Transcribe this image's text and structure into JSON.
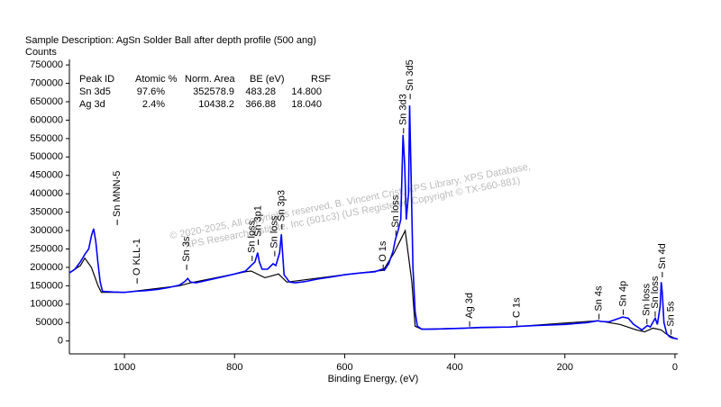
{
  "chart_data": {
    "type": "line",
    "title": "Sample Description:  AgSn Solder Ball after depth profile (500 ang)",
    "y_label": "Counts",
    "x_label": "Binding Energy, (eV)",
    "xlim": [
      1100,
      -5
    ],
    "xticks": [
      1000,
      800,
      600,
      400,
      200,
      0
    ],
    "ylim": [
      -35000,
      765000
    ],
    "yticks": [
      0,
      50000,
      100000,
      150000,
      200000,
      250000,
      300000,
      350000,
      400000,
      450000,
      500000,
      550000,
      600000,
      650000,
      700000,
      750000
    ],
    "watermark": [
      "© 2020-2025,  All copyrights reserved,  B. Vincent Crist,  XPS Library, XPS Database,",
      "XPS Research Institute, Inc (501c3)   (US Registered Copyright © TX-560-881)"
    ],
    "table": {
      "columns": [
        "Peak ID",
        "Atomic %",
        "Norm. Area",
        "BE (eV)",
        "RSF"
      ],
      "rows": [
        [
          "Sn 3d5",
          "97.6%",
          "352578.9",
          "483.28",
          "14.800"
        ],
        [
          "Ag 3d",
          "2.4%",
          "10438.2",
          "366.88",
          "18.040"
        ]
      ]
    },
    "series": [
      {
        "color": "#0000ff",
        "x": [
          1100,
          1090,
          1080,
          1072,
          1065,
          1060,
          1056,
          1052,
          1048,
          1044,
          1040,
          1020,
          1000,
          980,
          960,
          940,
          920,
          900,
          890,
          885,
          880,
          870,
          850,
          820,
          800,
          780,
          770,
          763,
          758,
          755,
          750,
          740,
          730,
          725,
          718,
          715,
          713,
          710,
          700,
          690,
          670,
          650,
          620,
          600,
          570,
          545,
          532,
          528,
          520,
          512,
          508,
          503,
          498,
          494,
          491,
          488,
          484,
          482,
          480,
          476,
          472,
          468,
          460,
          440,
          400,
          380,
          370,
          350,
          300,
          280,
          250,
          200,
          160,
          140,
          135,
          120,
          105,
          95,
          85,
          75,
          60,
          50,
          45,
          36,
          32,
          27,
          25,
          23,
          20,
          15,
          10,
          5,
          0,
          -5
        ],
        "values": [
          185000,
          195000,
          215000,
          235000,
          250000,
          285000,
          305000,
          270000,
          210000,
          160000,
          135000,
          133000,
          132000,
          135000,
          137000,
          140000,
          145000,
          152000,
          162000,
          170000,
          160000,
          158000,
          165000,
          175000,
          182000,
          190000,
          205000,
          215000,
          240000,
          215000,
          195000,
          195000,
          210000,
          205000,
          240000,
          290000,
          245000,
          180000,
          160000,
          158000,
          162000,
          168000,
          175000,
          180000,
          185000,
          188000,
          195000,
          192000,
          210000,
          245000,
          275000,
          300000,
          330000,
          560000,
          480000,
          330000,
          400000,
          640000,
          500000,
          200000,
          80000,
          40000,
          32000,
          32000,
          34000,
          35000,
          36000,
          37000,
          38000,
          40000,
          42000,
          45000,
          50000,
          55000,
          53000,
          52000,
          60000,
          65000,
          62000,
          45000,
          30000,
          42000,
          38000,
          62000,
          45000,
          95000,
          160000,
          130000,
          50000,
          20000,
          12000,
          8000,
          7000,
          5000
        ]
      },
      {
        "color": "#000000",
        "x": [
          1100,
          1080,
          1072,
          1060,
          1048,
          1042,
          1000,
          900,
          880,
          800,
          780,
          770,
          745,
          720,
          705,
          600,
          530,
          510,
          500,
          490,
          478,
          472,
          460,
          300,
          140,
          100,
          70,
          55,
          40,
          25,
          15,
          0,
          -5
        ],
        "values": [
          185000,
          205000,
          225000,
          200000,
          150000,
          132000,
          132000,
          150000,
          158000,
          182000,
          188000,
          190000,
          172000,
          182000,
          160000,
          180000,
          192000,
          240000,
          270000,
          300000,
          160000,
          40000,
          32000,
          38000,
          55000,
          45000,
          30000,
          25000,
          35000,
          30000,
          18000,
          7000,
          5000
        ]
      }
    ],
    "peaks": [
      {
        "label": "Sn MNN-5",
        "be": 1013,
        "counts": 315000
      },
      {
        "label": "O KLL-1",
        "be": 977,
        "counts": 156000
      },
      {
        "label": "Sn 3s",
        "be": 887,
        "counts": 193000
      },
      {
        "label": "Sn loss",
        "be": 768,
        "counts": 217000
      },
      {
        "label": "Sn 3p1",
        "be": 757,
        "counts": 261000
      },
      {
        "label": "Sn loss",
        "be": 727,
        "counts": 230000
      },
      {
        "label": "Sn 3p3",
        "be": 714,
        "counts": 303000
      },
      {
        "label": "O 1s",
        "be": 530,
        "counts": 193000
      },
      {
        "label": "Sn loss",
        "be": 507,
        "counts": 286000
      },
      {
        "label": "Sn 3d3",
        "be": 493,
        "counts": 564000
      },
      {
        "label": "Sn 3d5",
        "be": 481,
        "counts": 657000
      },
      {
        "label": "Ag 3d",
        "be": 373,
        "counts": 39000
      },
      {
        "label": "C 1s",
        "be": 287,
        "counts": 41000
      },
      {
        "label": "Sn 4s",
        "be": 138,
        "counts": 59000
      },
      {
        "label": "Sn 4p",
        "be": 94,
        "counts": 71000
      },
      {
        "label": "Sn loss",
        "be": 51,
        "counts": 46000
      },
      {
        "label": "Sn loss",
        "be": 36,
        "counts": 66000
      },
      {
        "label": "Sn 4d",
        "be": 23,
        "counts": 173000
      },
      {
        "label": "Sn 5s",
        "be": 7,
        "counts": 17000
      }
    ]
  }
}
